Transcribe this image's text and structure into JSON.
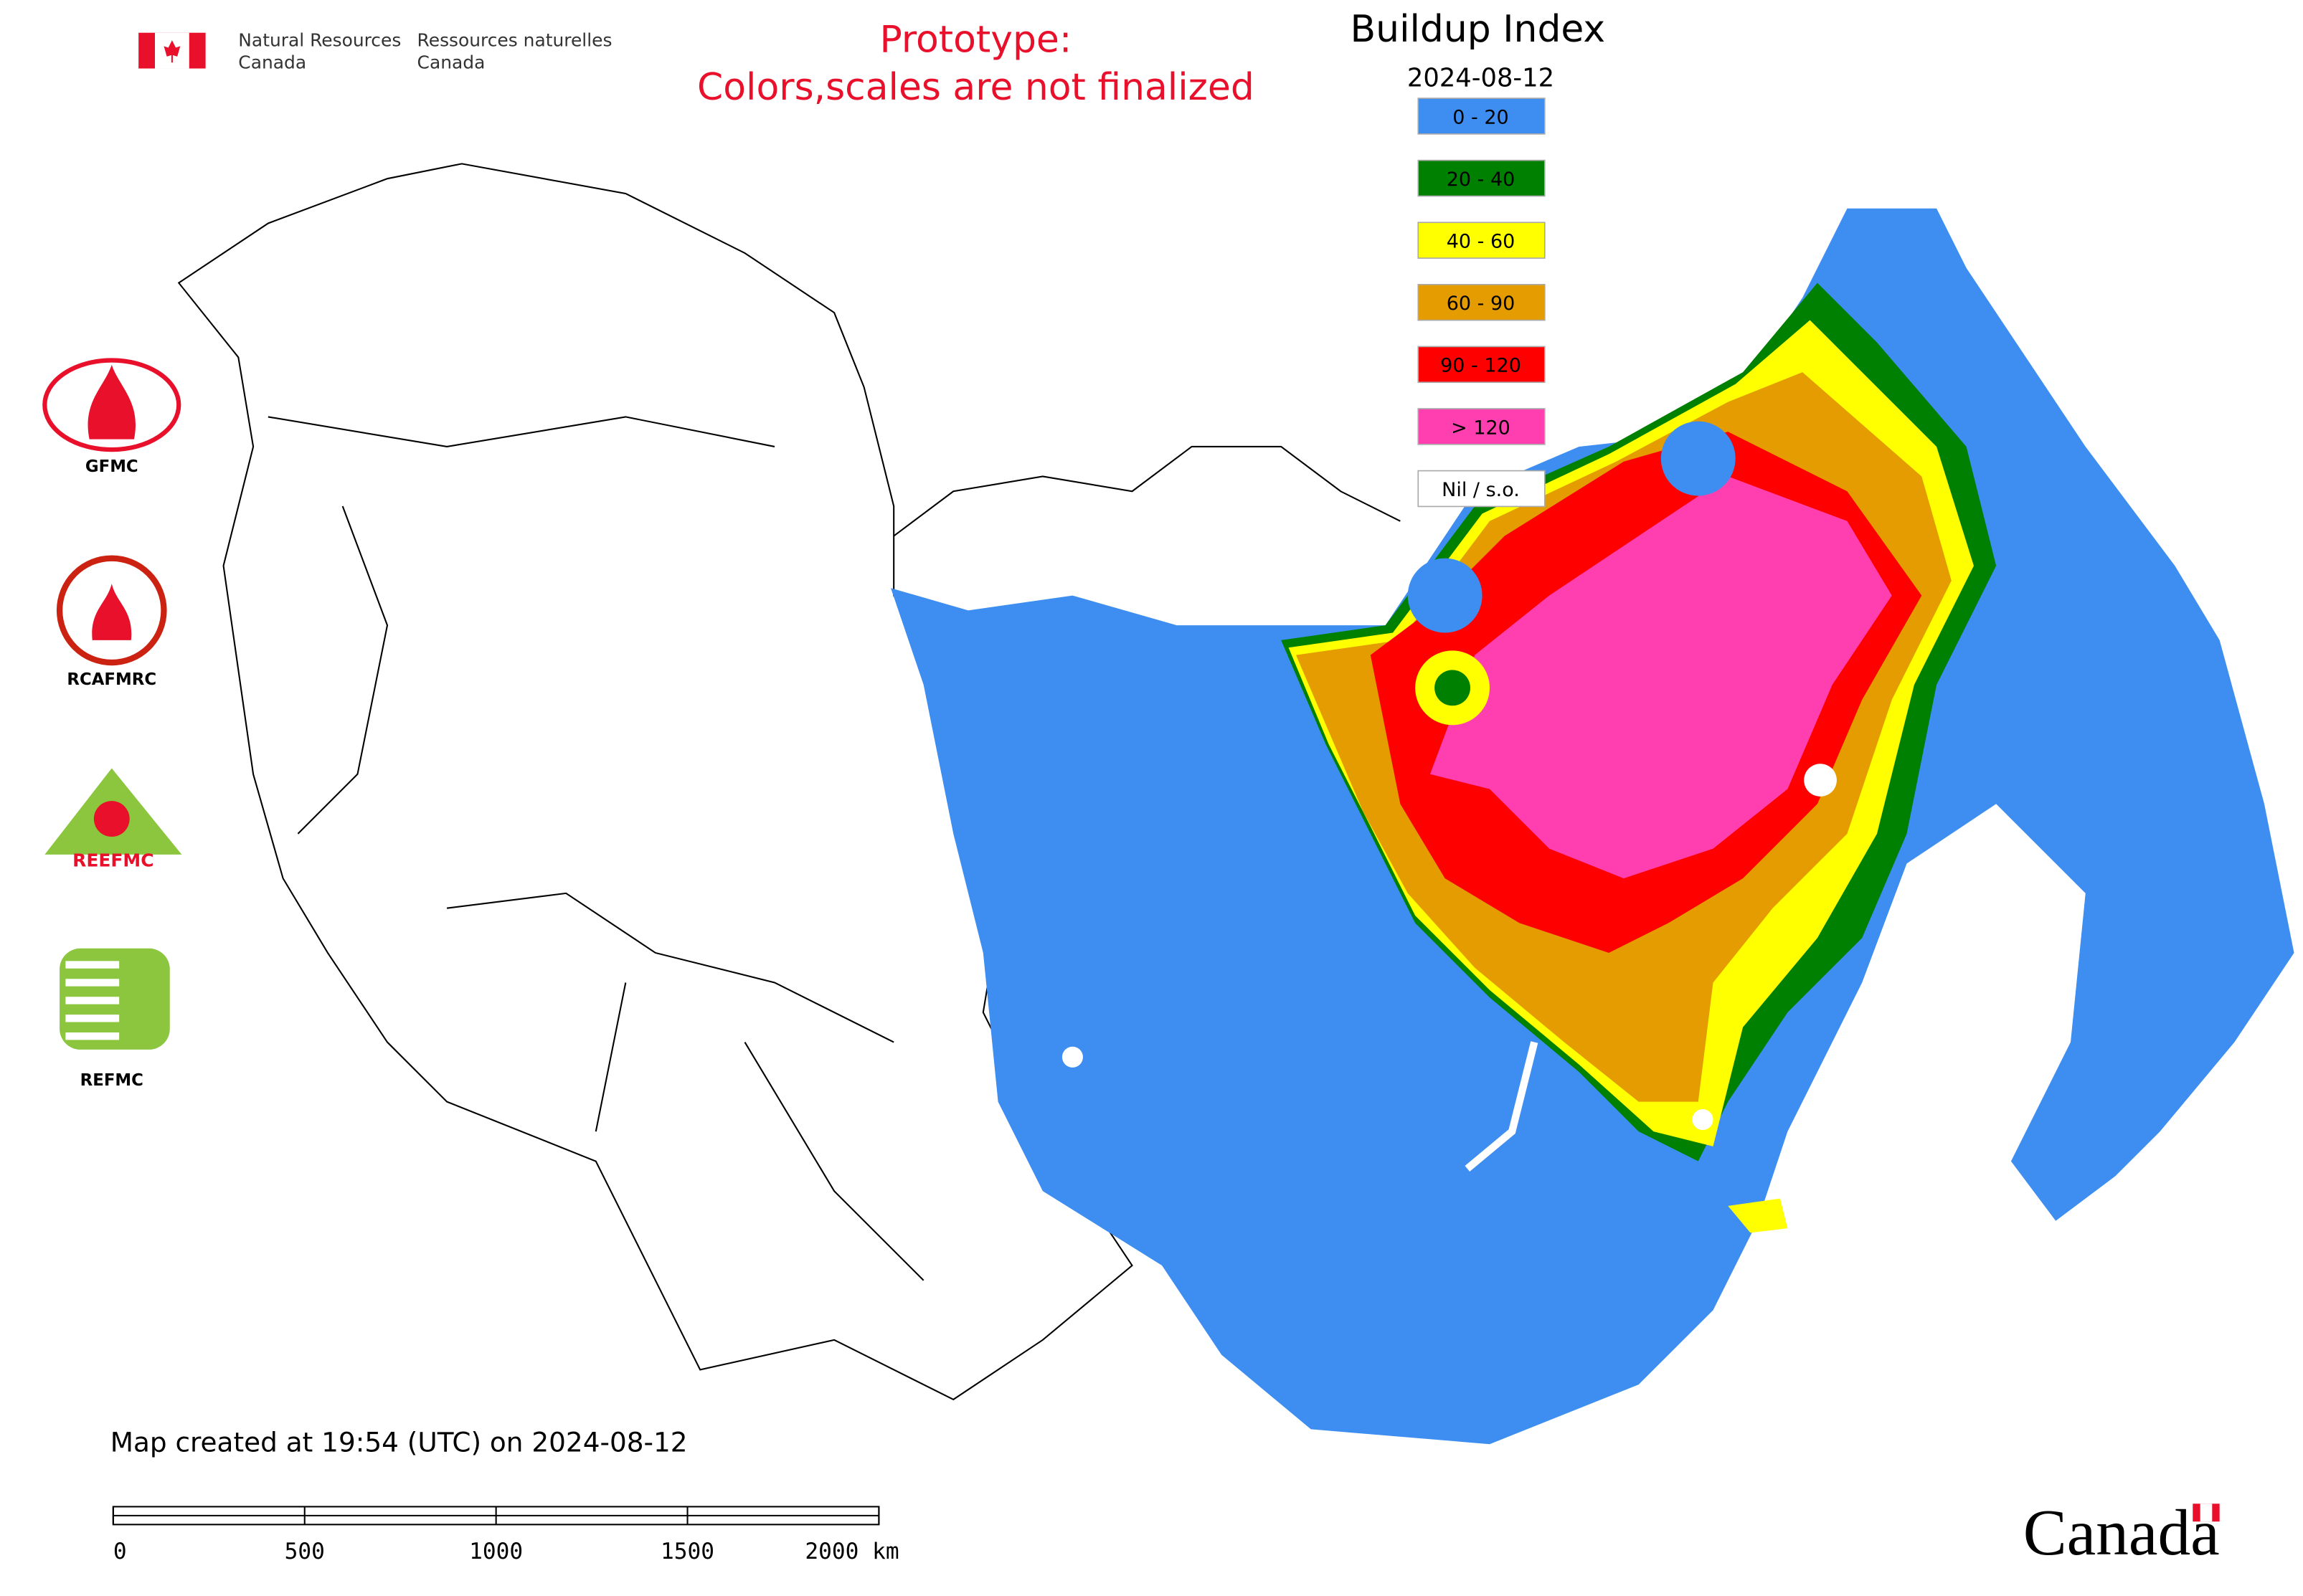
{
  "header": {
    "en_line1": "Natural Resources",
    "en_line2": "Canada",
    "fr_line1": "Ressources naturelles",
    "fr_line2": "Canada"
  },
  "notice": {
    "line1": "Prototype:",
    "line2": "Colors,scales are not finalized"
  },
  "legend": {
    "title": "Buildup Index",
    "date": "2024-08-12",
    "items": [
      {
        "label": "0 - 20",
        "color": "#3d8ef0"
      },
      {
        "label": "20 - 40",
        "color": "#008000"
      },
      {
        "label": "40 - 60",
        "color": "#ffff00"
      },
      {
        "label": "60 - 90",
        "color": "#e59c00"
      },
      {
        "label": "90 - 120",
        "color": "#ff0000"
      },
      {
        "label": "> 120",
        "color": "#ff3fb0"
      },
      {
        "label": "Nil / s.o.",
        "color": "#ffffff"
      }
    ]
  },
  "logos": {
    "gfmc": "GFMC",
    "rcafmrc": "RCAFMRC",
    "reefmc": "REEFMC",
    "refmc": "REFMC"
  },
  "footer": {
    "created": "Map created at 19:54 (UTC) on 2024-08-12",
    "scale_labels": [
      "0",
      "500",
      "1000",
      "1500",
      "2000 km"
    ],
    "wordmark": "Canada"
  }
}
